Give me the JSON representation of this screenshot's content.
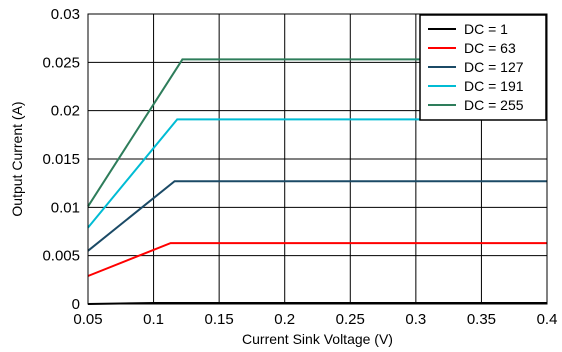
{
  "chart_data": {
    "type": "line",
    "title": "",
    "xlabel": "Current Sink Voltage (V)",
    "ylabel": "Output Current (A)",
    "xlim": [
      0.05,
      0.4
    ],
    "ylim": [
      0,
      0.03
    ],
    "x_ticks": [
      0.05,
      0.1,
      0.15,
      0.2,
      0.25,
      0.3,
      0.35,
      0.4
    ],
    "x_tick_labels": [
      "0.05",
      "0.1",
      "0.15",
      "0.2",
      "0.25",
      "0.3",
      "0.35",
      "0.4"
    ],
    "y_ticks": [
      0,
      0.005,
      0.01,
      0.015,
      0.02,
      0.025,
      0.03
    ],
    "y_tick_labels": [
      "0",
      "0.005",
      "0.01",
      "0.015",
      "0.02",
      "0.025",
      "0.03"
    ],
    "grid": true,
    "legend_position": "top-right",
    "series": [
      {
        "name": "DC = 1",
        "color": "#000000",
        "points": [
          [
            0.05,
            0.0
          ],
          [
            0.1,
            0.0001
          ],
          [
            0.4,
            0.0001
          ]
        ]
      },
      {
        "name": "DC = 63",
        "color": "#ff0000",
        "points": [
          [
            0.05,
            0.0029
          ],
          [
            0.113,
            0.0063
          ],
          [
            0.4,
            0.0063
          ]
        ]
      },
      {
        "name": "DC = 127",
        "color": "#1b4a66",
        "points": [
          [
            0.05,
            0.0055
          ],
          [
            0.116,
            0.0127
          ],
          [
            0.4,
            0.0127
          ]
        ]
      },
      {
        "name": "DC = 191",
        "color": "#00bcd4",
        "points": [
          [
            0.05,
            0.0079
          ],
          [
            0.118,
            0.0191
          ],
          [
            0.4,
            0.0191
          ]
        ]
      },
      {
        "name": "DC = 255",
        "color": "#2e7d5b",
        "points": [
          [
            0.05,
            0.0101
          ],
          [
            0.122,
            0.0253
          ],
          [
            0.4,
            0.0253
          ]
        ]
      }
    ]
  }
}
